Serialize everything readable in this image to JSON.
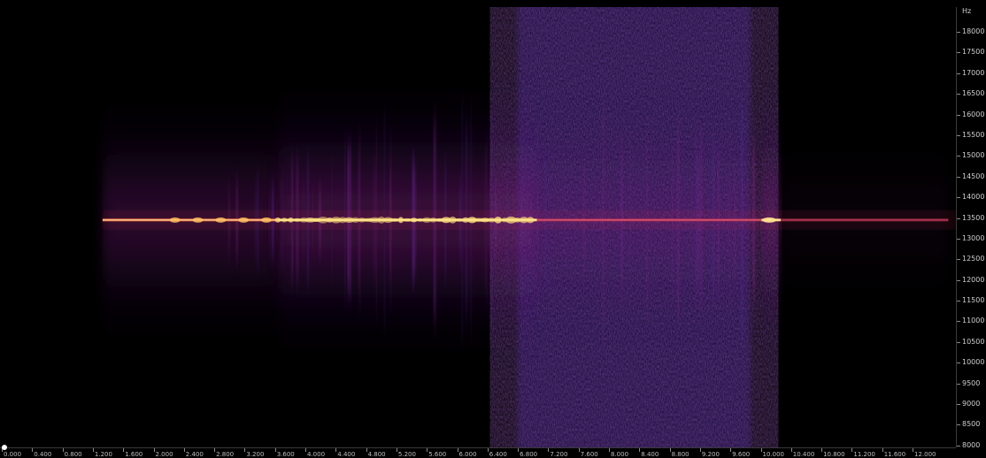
{
  "chart_data": {
    "type": "heatmap",
    "title": "",
    "xlabel": "",
    "ylabel": "",
    "y_unit": "Hz",
    "ylim": [
      7950,
      18600
    ],
    "xlim": [
      0,
      12.5
    ],
    "y_ticks": [
      8000,
      8500,
      9000,
      9500,
      10000,
      10500,
      11000,
      11500,
      12000,
      12500,
      13000,
      13500,
      14000,
      14500,
      15000,
      15500,
      16000,
      16500,
      17000,
      17500,
      18000
    ],
    "x_ticks": [
      "0.000",
      "0.400",
      "0.800",
      "1.200",
      "1.600",
      "2.000",
      "2.400",
      "2.800",
      "3.200",
      "3.600",
      "4.000",
      "4.400",
      "4.800",
      "5.200",
      "5.600",
      "6.000",
      "6.400",
      "6.800",
      "7.200",
      "7.600",
      "8.000",
      "8.400",
      "8.800",
      "9.200",
      "9.600",
      "10.000",
      "10.400",
      "10.800",
      "11.200",
      "11.600",
      "12.000"
    ],
    "tone": {
      "frequency": 13450,
      "segments": [
        {
          "start": 1.3,
          "end": 3.6,
          "intensity": 0.75
        },
        {
          "start": 3.6,
          "end": 7.0,
          "intensity": 0.95
        },
        {
          "start": 7.0,
          "end": 9.95,
          "intensity": 0.6
        },
        {
          "start": 9.95,
          "end": 10.2,
          "intensity": 0.9
        },
        {
          "start": 10.2,
          "end": 12.4,
          "intensity": 0.25
        }
      ]
    },
    "noise_band": {
      "start": 6.7,
      "end": 9.85,
      "fmin": 7950,
      "fmax": 18600,
      "intensity": 0.4
    },
    "colors": {
      "low": "#000000",
      "mid_low": "#1a0a5e",
      "mid": "#7a1d8f",
      "mid_high": "#e0305a",
      "high": "#ffb040",
      "peak": "#ffffe0"
    }
  }
}
